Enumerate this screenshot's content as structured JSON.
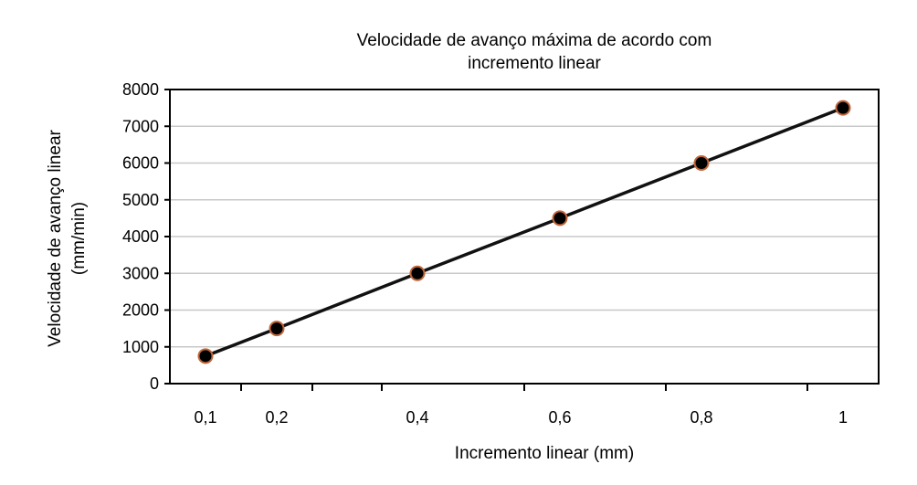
{
  "chart_data": {
    "type": "line",
    "title_lines": [
      "Velocidade de avanço máxima de acordo com",
      "incremento linear"
    ],
    "xlabel": "Incremento linear (mm)",
    "ylabel_lines": [
      "Velocidade de avanço linear",
      "(mm/min)"
    ],
    "categories": [
      "0,1",
      "0,2",
      "0,4",
      "0,6",
      "0,8",
      "1"
    ],
    "values": [
      750,
      1500,
      3000,
      4500,
      6000,
      7500
    ],
    "ylim": [
      0,
      8000
    ],
    "yticks": [
      "0",
      "1000",
      "2000",
      "3000",
      "4000",
      "5000",
      "6000",
      "7000",
      "8000"
    ],
    "grid": "horizontal",
    "legend": "none",
    "colors": {
      "line": "#111111",
      "marker_fill": "#000000",
      "marker_edge": "#c0663a",
      "grid": "#c8c8c8",
      "axis": "#000000"
    }
  }
}
